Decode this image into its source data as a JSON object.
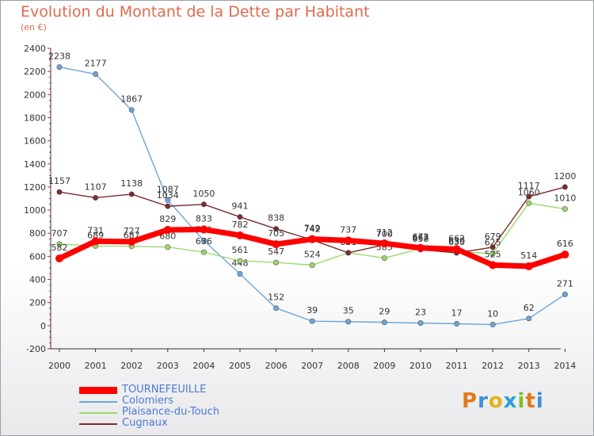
{
  "title": "Evolution du Montant de la Dette par Habitant",
  "unit": "(en €)",
  "logo_text": "Proxiti",
  "chart_data": {
    "type": "line",
    "x": [
      "2000",
      "2001",
      "2002",
      "2003",
      "2004",
      "2005",
      "2006",
      "2007",
      "2008",
      "2009",
      "2010",
      "2011",
      "2012",
      "2013",
      "2014"
    ],
    "ylim": [
      -200,
      2400
    ],
    "yticks": [
      -200,
      0,
      200,
      400,
      600,
      800,
      1000,
      1200,
      1400,
      1600,
      1800,
      2000,
      2200,
      2400
    ],
    "grid": false,
    "legend_position": "bottom-left",
    "series": [
      {
        "name": "TOURNEFEUILLE",
        "color": "#ff0000",
        "values": [
          582,
          731,
          727,
          829,
          833,
          782,
          705,
          749,
          737,
          712,
          673,
          662,
          525,
          514,
          616
        ]
      },
      {
        "name": "Colomiers",
        "color": "#6ea6d8",
        "values": [
          2238,
          2177,
          1867,
          1087,
          736,
          448,
          152,
          39,
          35,
          29,
          23,
          17,
          10,
          62,
          271
        ]
      },
      {
        "name": "Plaisance-du-Touch",
        "color": "#9ed86a",
        "values": [
          707,
          689,
          687,
          680,
          636,
          561,
          547,
          524,
          631,
          585,
          667,
          639,
          625,
          1060,
          1010
        ]
      },
      {
        "name": "Cugnaux",
        "color": "#7a2b2b",
        "values": [
          1157,
          1107,
          1138,
          1034,
          1050,
          941,
          838,
          742,
          631,
          700,
          658,
          630,
          679,
          1117,
          1200
        ]
      }
    ]
  }
}
